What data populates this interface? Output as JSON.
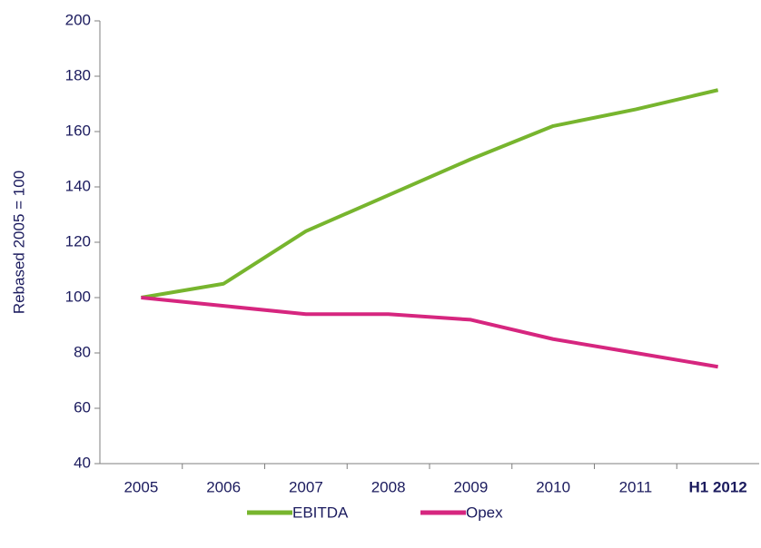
{
  "chart_data": {
    "type": "line",
    "y_label": "Rebased 2005 = 100",
    "categories": [
      "2005",
      "2006",
      "2007",
      "2008",
      "2009",
      "2010",
      "2011",
      "H1 2012"
    ],
    "series": [
      {
        "name": "EBITDA",
        "color": "#77b52e",
        "values": [
          100,
          105,
          124,
          137,
          150,
          162,
          168,
          175
        ]
      },
      {
        "name": "Opex",
        "color": "#d6267f",
        "values": [
          100,
          97,
          94,
          94,
          92,
          85,
          80,
          75
        ]
      }
    ],
    "ylim": [
      40,
      200
    ],
    "yticks": [
      40,
      60,
      80,
      100,
      120,
      140,
      160,
      180,
      200
    ],
    "legend": "bottom"
  }
}
